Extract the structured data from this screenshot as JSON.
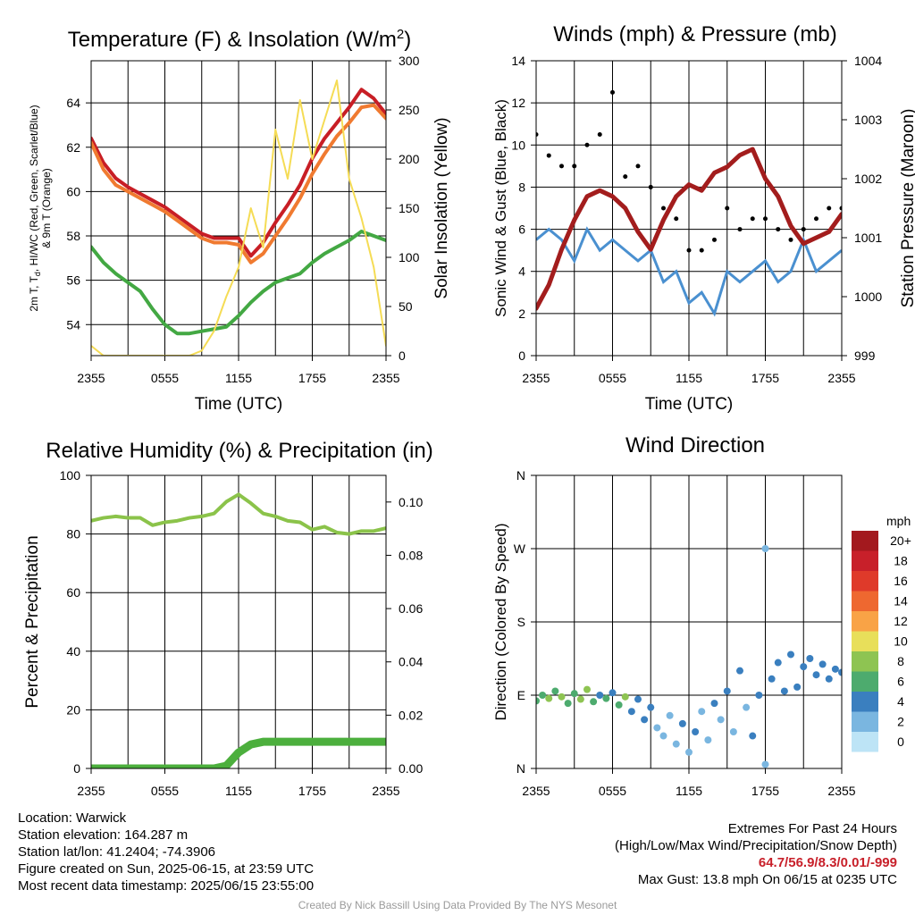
{
  "chart_data": [
    {
      "type": "line",
      "title": "Temperature (F) & Insolation (W/m²)",
      "xlabel": "Time (UTC)",
      "ylabel": "2m T, T_d, HI/WC (Red, Green, Scarlet/Blue) & 9m T (Orange)",
      "y2label": "Solar Insolation (Yellow)",
      "x_ticks": [
        "2355",
        "0555",
        "1155",
        "1755",
        "2355"
      ],
      "y_ticks": [
        54,
        56,
        58,
        60,
        62,
        64
      ],
      "y2_ticks": [
        0,
        50,
        100,
        150,
        200,
        250,
        300
      ],
      "ylim": [
        52.6,
        65.9
      ],
      "y2lim": [
        0,
        300
      ],
      "grid": true,
      "x_hours": [
        0,
        1,
        2,
        3,
        4,
        5,
        6,
        7,
        8,
        9,
        10,
        11,
        12,
        13,
        14,
        15,
        16,
        17,
        18,
        19,
        20,
        21,
        22,
        23,
        24
      ],
      "series": [
        {
          "color": "#c81e25",
          "values": [
            62.4,
            61.3,
            60.6,
            60.2,
            59.9,
            59.6,
            59.3,
            58.9,
            58.5,
            58.1,
            57.9,
            57.9,
            57.9,
            57.1,
            57.7,
            58.6,
            59.4,
            60.3,
            61.5,
            62.4,
            63.1,
            63.8,
            64.6,
            64.2,
            63.5
          ]
        },
        {
          "color": "#f07a30",
          "values": [
            62.2,
            61.0,
            60.3,
            60.0,
            59.7,
            59.4,
            59.1,
            58.7,
            58.3,
            57.9,
            57.7,
            57.7,
            57.6,
            56.8,
            57.2,
            58.0,
            58.8,
            59.7,
            60.8,
            61.7,
            62.5,
            63.1,
            63.8,
            63.9,
            63.3
          ]
        },
        {
          "color": "#43a843",
          "values": [
            57.5,
            56.8,
            56.3,
            55.9,
            55.5,
            54.7,
            54.0,
            53.6,
            53.6,
            53.7,
            53.8,
            53.9,
            54.4,
            55.0,
            55.5,
            55.9,
            56.1,
            56.3,
            56.8,
            57.2,
            57.5,
            57.8,
            58.2,
            58.0,
            57.8
          ]
        },
        {
          "color": "#f5dc55",
          "axis": "y2",
          "values": [
            10,
            0,
            0,
            0,
            0,
            0,
            0,
            0,
            0,
            5,
            25,
            60,
            90,
            150,
            110,
            230,
            180,
            260,
            200,
            240,
            280,
            180,
            140,
            90,
            10
          ]
        }
      ]
    },
    {
      "type": "scatter",
      "title": "Winds (mph) & Pressure (mb)",
      "xlabel": "Time (UTC)",
      "ylabel": "Sonic Wind & Gust (Blue, Black)",
      "y2label": "Station Pressure (Maroon)",
      "x_ticks": [
        "2355",
        "0555",
        "1155",
        "1755",
        "2355"
      ],
      "y_ticks": [
        0,
        2,
        4,
        6,
        8,
        10,
        12,
        14
      ],
      "y2_ticks": [
        999,
        1000,
        1001,
        1002,
        1003,
        1004
      ],
      "ylim": [
        0,
        14
      ],
      "y2lim": [
        999,
        1004
      ],
      "grid": true,
      "x_hours": [
        0,
        1,
        2,
        3,
        4,
        5,
        6,
        7,
        8,
        9,
        10,
        11,
        12,
        13,
        14,
        15,
        16,
        17,
        18,
        19,
        20,
        21,
        22,
        23,
        24
      ],
      "series": [
        {
          "color": "#4a90d0",
          "values": [
            5.5,
            6.0,
            5.5,
            4.5,
            6.0,
            5.0,
            5.5,
            5.0,
            4.5,
            5.0,
            3.5,
            4.0,
            2.5,
            3.0,
            2.0,
            4.0,
            3.5,
            4.0,
            4.5,
            3.5,
            4.0,
            5.5,
            4.0,
            4.5,
            5.0
          ]
        },
        {
          "color": "#000000",
          "values": [
            10.5,
            9.5,
            9.0,
            9.0,
            10.0,
            10.5,
            12.5,
            8.5,
            9.0,
            8.0,
            7.0,
            6.5,
            5.0,
            5.0,
            5.5,
            7.0,
            6.0,
            6.5,
            6.5,
            6.0,
            5.5,
            6.0,
            6.5,
            7.0,
            7.0
          ]
        },
        {
          "color": "#a31d1d",
          "axis": "y2",
          "values": [
            999.8,
            1000.2,
            1000.8,
            1001.3,
            1001.7,
            1001.8,
            1001.7,
            1001.5,
            1001.1,
            1000.8,
            1001.3,
            1001.7,
            1001.9,
            1001.8,
            1002.1,
            1002.2,
            1002.4,
            1002.5,
            1002.0,
            1001.7,
            1001.2,
            1000.9,
            1001.0,
            1001.1,
            1001.4
          ]
        }
      ]
    },
    {
      "type": "line",
      "title": "Relative Humidity (%) & Precipitation (in)",
      "ylabel": "Percent & Precipitation",
      "x_ticks": [
        "2355",
        "0555",
        "1155",
        "1755",
        "2355"
      ],
      "y_ticks": [
        0,
        20,
        40,
        60,
        80,
        100
      ],
      "y2_ticks": [
        "0.00",
        "0.02",
        "0.04",
        "0.06",
        "0.08",
        "0.10"
      ],
      "ylim": [
        0,
        100
      ],
      "y2lim": [
        0,
        0.11
      ],
      "grid": true,
      "x_hours": [
        0,
        1,
        2,
        3,
        4,
        5,
        6,
        7,
        8,
        9,
        10,
        11,
        12,
        13,
        14,
        15,
        16,
        17,
        18,
        19,
        20,
        21,
        22,
        23,
        24
      ],
      "series": [
        {
          "color": "#8bc34a",
          "values": [
            84.5,
            85.5,
            86.0,
            85.5,
            85.5,
            83.0,
            84.0,
            84.5,
            85.5,
            86.0,
            87.0,
            91.0,
            93.5,
            90.5,
            87.0,
            86.0,
            84.5,
            84.0,
            81.5,
            82.5,
            80.5,
            80.0,
            81.0,
            81.0,
            82.0
          ]
        },
        {
          "color": "#4caf3d",
          "axis": "y2",
          "values": [
            0,
            0,
            0,
            0,
            0,
            0,
            0,
            0,
            0,
            0,
            0,
            0.001,
            0.006,
            0.009,
            0.01,
            0.01,
            0.01,
            0.01,
            0.01,
            0.01,
            0.01,
            0.01,
            0.01,
            0.01,
            0.01
          ]
        }
      ]
    },
    {
      "type": "scatter",
      "title": "Wind Direction",
      "ylabel": "Direction (Colored By Speed)",
      "x_ticks": [
        "2355",
        "0555",
        "1155",
        "1755",
        "2355"
      ],
      "y_ticks": [
        "N",
        "E",
        "S",
        "W",
        "N"
      ],
      "ylim": [
        0,
        360
      ],
      "grid": true,
      "colorbar": {
        "title": "mph",
        "labels": [
          "20+",
          "18",
          "16",
          "14",
          "12",
          "10",
          "8",
          "6",
          "4",
          "2",
          "0"
        ],
        "colors": [
          "#a3191e",
          "#c8202a",
          "#df3a2a",
          "#ee6830",
          "#f9a346",
          "#e8df5a",
          "#8ec452",
          "#4dab6e",
          "#3a7fbf",
          "#7ab6e0",
          "#bde4f6"
        ]
      },
      "points": [
        {
          "x": 0.0,
          "y": 83,
          "s": 5
        },
        {
          "x": 0.5,
          "y": 90,
          "s": 6
        },
        {
          "x": 1.0,
          "y": 86,
          "s": 7
        },
        {
          "x": 1.5,
          "y": 95,
          "s": 5
        },
        {
          "x": 2.0,
          "y": 88,
          "s": 7
        },
        {
          "x": 2.5,
          "y": 80,
          "s": 6
        },
        {
          "x": 3.0,
          "y": 92,
          "s": 5
        },
        {
          "x": 3.5,
          "y": 85,
          "s": 7
        },
        {
          "x": 4.0,
          "y": 97,
          "s": 7
        },
        {
          "x": 4.5,
          "y": 82,
          "s": 5
        },
        {
          "x": 5.0,
          "y": 90,
          "s": 4
        },
        {
          "x": 5.5,
          "y": 86,
          "s": 5
        },
        {
          "x": 6.0,
          "y": 93,
          "s": 4
        },
        {
          "x": 6.5,
          "y": 78,
          "s": 6
        },
        {
          "x": 7.0,
          "y": 88,
          "s": 7
        },
        {
          "x": 7.5,
          "y": 70,
          "s": 4
        },
        {
          "x": 8.0,
          "y": 85,
          "s": 3
        },
        {
          "x": 8.5,
          "y": 60,
          "s": 4
        },
        {
          "x": 9.0,
          "y": 75,
          "s": 3
        },
        {
          "x": 9.5,
          "y": 50,
          "s": 2
        },
        {
          "x": 10.0,
          "y": 40,
          "s": 1
        },
        {
          "x": 10.5,
          "y": 65,
          "s": 2
        },
        {
          "x": 11.0,
          "y": 30,
          "s": 2
        },
        {
          "x": 11.5,
          "y": 55,
          "s": 3
        },
        {
          "x": 12.0,
          "y": 20,
          "s": 2
        },
        {
          "x": 12.5,
          "y": 45,
          "s": 3
        },
        {
          "x": 13.0,
          "y": 70,
          "s": 2
        },
        {
          "x": 13.5,
          "y": 35,
          "s": 2
        },
        {
          "x": 14.0,
          "y": 80,
          "s": 3
        },
        {
          "x": 14.5,
          "y": 60,
          "s": 2
        },
        {
          "x": 15.0,
          "y": 95,
          "s": 4
        },
        {
          "x": 15.5,
          "y": 45,
          "s": 2
        },
        {
          "x": 16.0,
          "y": 120,
          "s": 3
        },
        {
          "x": 16.5,
          "y": 75,
          "s": 2
        },
        {
          "x": 17.0,
          "y": 40,
          "s": 3
        },
        {
          "x": 17.5,
          "y": 90,
          "s": 3
        },
        {
          "x": 18.0,
          "y": 5,
          "s": 1
        },
        {
          "x": 18.0,
          "y": 270,
          "s": 1
        },
        {
          "x": 18.5,
          "y": 110,
          "s": 3
        },
        {
          "x": 19.0,
          "y": 130,
          "s": 4
        },
        {
          "x": 19.5,
          "y": 95,
          "s": 3
        },
        {
          "x": 20.0,
          "y": 140,
          "s": 4
        },
        {
          "x": 20.5,
          "y": 100,
          "s": 4
        },
        {
          "x": 21.0,
          "y": 125,
          "s": 4
        },
        {
          "x": 21.5,
          "y": 135,
          "s": 4
        },
        {
          "x": 22.0,
          "y": 115,
          "s": 4
        },
        {
          "x": 22.5,
          "y": 128,
          "s": 4
        },
        {
          "x": 23.0,
          "y": 110,
          "s": 3
        },
        {
          "x": 23.5,
          "y": 122,
          "s": 4
        },
        {
          "x": 24.0,
          "y": 118,
          "s": 4
        }
      ]
    }
  ],
  "info_left": {
    "location": "Location: Warwick",
    "elevation": "Station elevation: 164.287 m",
    "latlon": "Station lat/lon: 41.2404; -74.3906",
    "created": "Figure created on Sun, 2025-06-15, at 23:59 UTC",
    "recent": "Most recent data timestamp: 2025/06/15 23:55:00"
  },
  "info_right": {
    "line1": "Extremes For Past 24 Hours",
    "line2": "(High/Low/Max Wind/Precipitation/Snow Depth)",
    "values": "64.7/56.9/8.3/0.01/-999",
    "gust": "Max Gust: 13.8 mph On 06/15 at 0235 UTC"
  },
  "credit": "Created By Nick Bassill Using Data Provided By The NYS Mesonet"
}
